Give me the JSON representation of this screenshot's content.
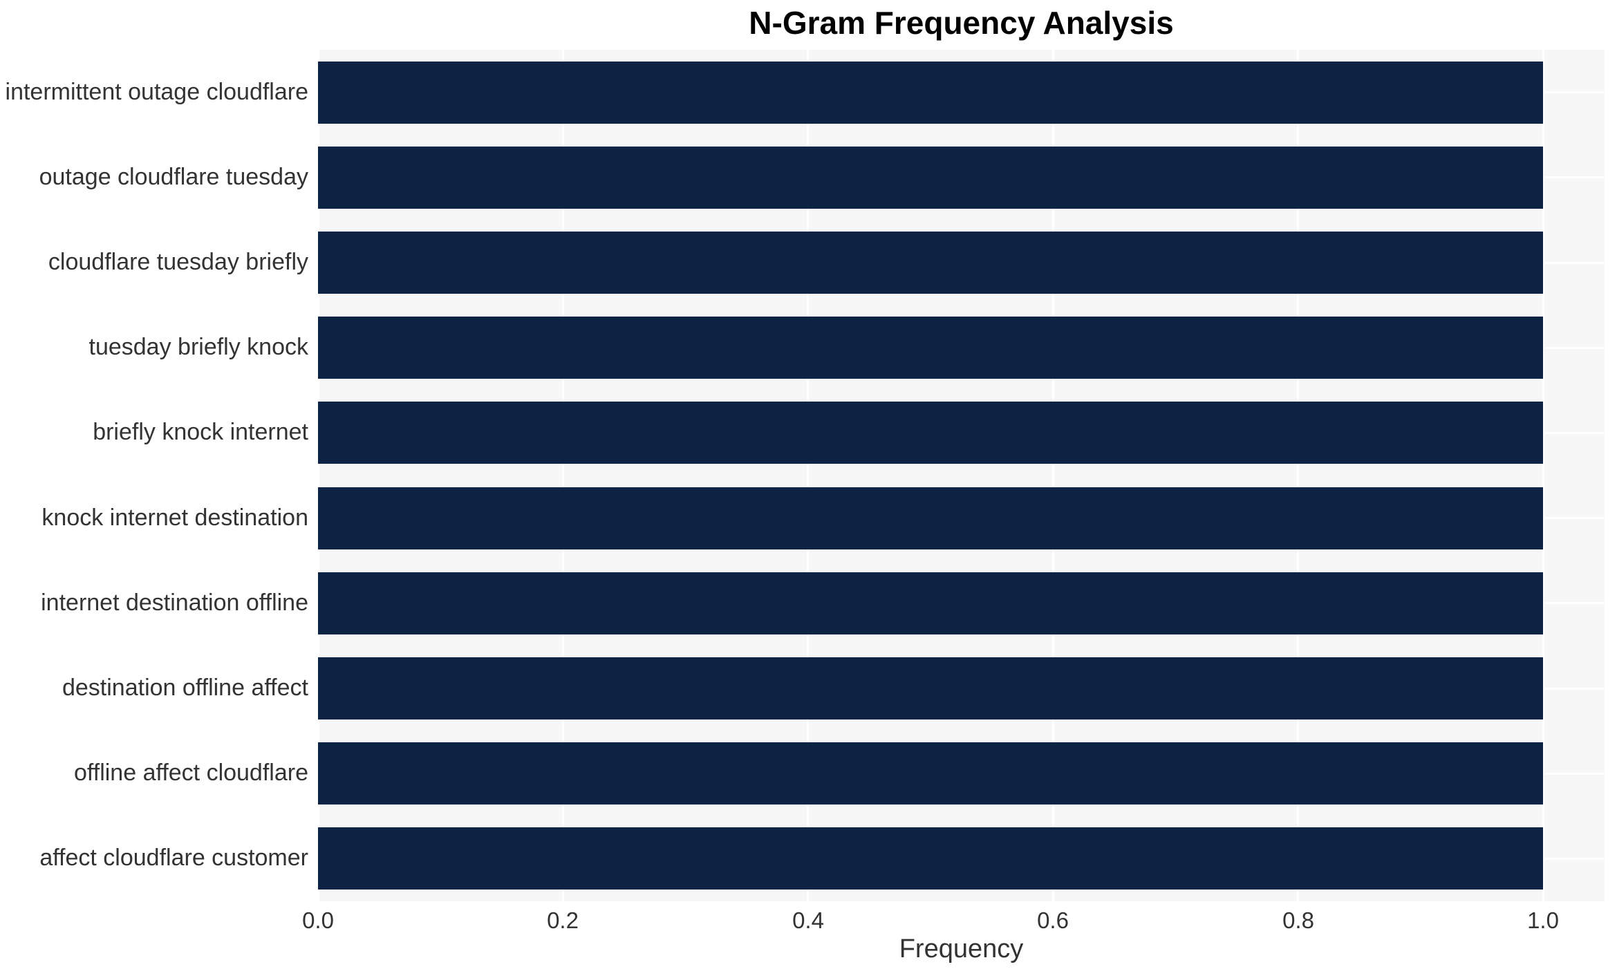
{
  "title": "N-Gram Frequency Analysis",
  "chart_data": {
    "type": "bar",
    "orientation": "horizontal",
    "title": "N-Gram Frequency Analysis",
    "xlabel": "Frequency",
    "ylabel": "",
    "categories": [
      "intermittent outage cloudflare",
      "outage cloudflare tuesday",
      "cloudflare tuesday briefly",
      "tuesday briefly knock",
      "briefly knock internet",
      "knock internet destination",
      "internet destination offline",
      "destination offline affect",
      "offline affect cloudflare",
      "affect cloudflare customer"
    ],
    "values": [
      1.0,
      1.0,
      1.0,
      1.0,
      1.0,
      1.0,
      1.0,
      1.0,
      1.0,
      1.0
    ],
    "xticks": [
      0.0,
      0.2,
      0.4,
      0.6,
      0.8,
      1.0
    ],
    "xtick_labels": [
      "0.0",
      "0.2",
      "0.4",
      "0.6",
      "0.8",
      "1.0"
    ],
    "xlim": [
      0,
      1.05
    ],
    "grid": true,
    "legend": false,
    "colors": {
      "bar": "#0c2344",
      "plot_background": "#f7f7f7",
      "figure_background": "#ffffff",
      "grid_line": "#ffffff",
      "tick_text": "#333333",
      "title_text": "#000000"
    }
  }
}
